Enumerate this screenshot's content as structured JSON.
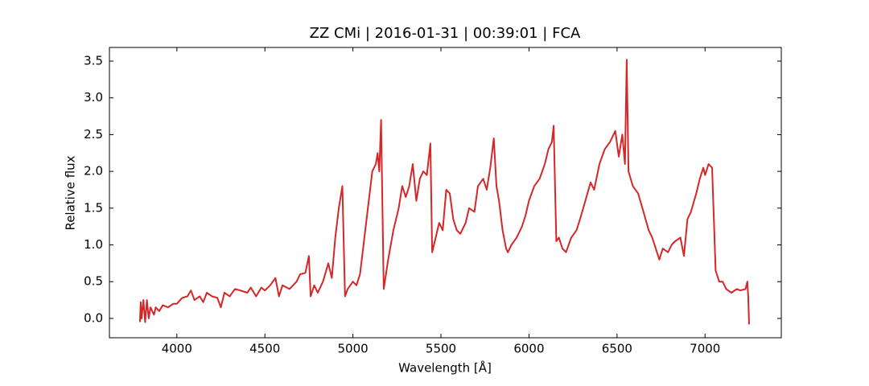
{
  "chart_data": {
    "type": "line",
    "title": "ZZ CMi | 2016-01-31 | 00:39:01 | FCA",
    "x_label": "Wavelength [Å]",
    "y_label": "Relative flux",
    "color": "#d62728",
    "xlim": [
      3617,
      7433
    ],
    "ylim": [
      -0.263,
      3.686
    ],
    "xticks": [
      4000,
      4500,
      5000,
      5500,
      6000,
      6500,
      7000
    ],
    "yticks": [
      {
        "value": 0,
        "label": "0.0"
      },
      0.5,
      {
        "value": 1,
        "label": "1.0"
      },
      1.5,
      {
        "value": 2,
        "label": "2.0"
      },
      2.5,
      {
        "value": 3,
        "label": "3.0"
      },
      3.5
    ],
    "x": [
      3790,
      3795,
      3800,
      3810,
      3820,
      3830,
      3840,
      3850,
      3870,
      3880,
      3900,
      3920,
      3950,
      3980,
      4000,
      4030,
      4060,
      4080,
      4100,
      4130,
      4150,
      4170,
      4200,
      4230,
      4250,
      4270,
      4300,
      4330,
      4360,
      4400,
      4420,
      4450,
      4480,
      4500,
      4530,
      4560,
      4580,
      4600,
      4640,
      4680,
      4700,
      4730,
      4750,
      4760,
      4780,
      4800,
      4830,
      4860,
      4880,
      4900,
      4920,
      4940,
      4955,
      4970,
      5000,
      5020,
      5040,
      5060,
      5090,
      5110,
      5130,
      5140,
      5150,
      5160,
      5175,
      5200,
      5230,
      5260,
      5280,
      5300,
      5320,
      5340,
      5360,
      5380,
      5400,
      5420,
      5440,
      5450,
      5470,
      5490,
      5510,
      5530,
      5550,
      5570,
      5590,
      5610,
      5640,
      5660,
      5690,
      5710,
      5740,
      5760,
      5780,
      5800,
      5815,
      5830,
      5850,
      5870,
      5880,
      5900,
      5930,
      5960,
      5980,
      6000,
      6030,
      6060,
      6090,
      6110,
      6130,
      6140,
      6155,
      6170,
      6190,
      6210,
      6240,
      6270,
      6290,
      6320,
      6350,
      6370,
      6400,
      6430,
      6460,
      6490,
      6510,
      6530,
      6545,
      6555,
      6565,
      6590,
      6620,
      6650,
      6680,
      6700,
      6720,
      6740,
      6760,
      6790,
      6810,
      6830,
      6860,
      6880,
      6900,
      6920,
      6950,
      6970,
      6990,
      7000,
      7020,
      7040,
      7060,
      7080,
      7100,
      7120,
      7150,
      7180,
      7200,
      7230,
      7240,
      7245,
      7250
    ],
    "values": [
      -0.05,
      0.22,
      0.0,
      0.25,
      -0.05,
      0.25,
      0.0,
      0.15,
      0.05,
      0.15,
      0.1,
      0.18,
      0.15,
      0.2,
      0.2,
      0.28,
      0.3,
      0.38,
      0.25,
      0.3,
      0.22,
      0.35,
      0.3,
      0.28,
      0.15,
      0.35,
      0.3,
      0.4,
      0.38,
      0.35,
      0.42,
      0.3,
      0.42,
      0.38,
      0.45,
      0.55,
      0.3,
      0.45,
      0.4,
      0.5,
      0.6,
      0.62,
      0.85,
      0.3,
      0.45,
      0.35,
      0.5,
      0.75,
      0.55,
      1.1,
      1.5,
      1.8,
      0.3,
      0.4,
      0.5,
      0.45,
      0.6,
      1.0,
      1.6,
      2.0,
      2.1,
      2.25,
      2.0,
      2.7,
      0.4,
      0.8,
      1.2,
      1.5,
      1.8,
      1.65,
      1.8,
      2.1,
      1.6,
      1.9,
      2.0,
      1.95,
      2.38,
      0.9,
      1.1,
      1.3,
      1.2,
      1.75,
      1.7,
      1.35,
      1.2,
      1.15,
      1.3,
      1.5,
      1.45,
      1.8,
      1.9,
      1.75,
      2.05,
      2.45,
      1.8,
      1.6,
      1.2,
      0.95,
      0.9,
      1.0,
      1.1,
      1.25,
      1.4,
      1.6,
      1.8,
      1.9,
      2.1,
      2.3,
      2.4,
      2.62,
      1.05,
      1.1,
      0.95,
      0.9,
      1.1,
      1.2,
      1.35,
      1.6,
      1.85,
      1.75,
      2.1,
      2.3,
      2.4,
      2.55,
      2.2,
      2.5,
      2.1,
      3.52,
      2.0,
      1.8,
      1.7,
      1.45,
      1.2,
      1.1,
      0.95,
      0.8,
      0.95,
      0.9,
      1.0,
      1.05,
      1.1,
      0.85,
      1.35,
      1.45,
      1.7,
      1.9,
      2.05,
      1.95,
      2.1,
      2.05,
      0.65,
      0.5,
      0.5,
      0.4,
      0.35,
      0.4,
      0.38,
      0.4,
      0.5,
      0.3,
      -0.08
    ]
  }
}
